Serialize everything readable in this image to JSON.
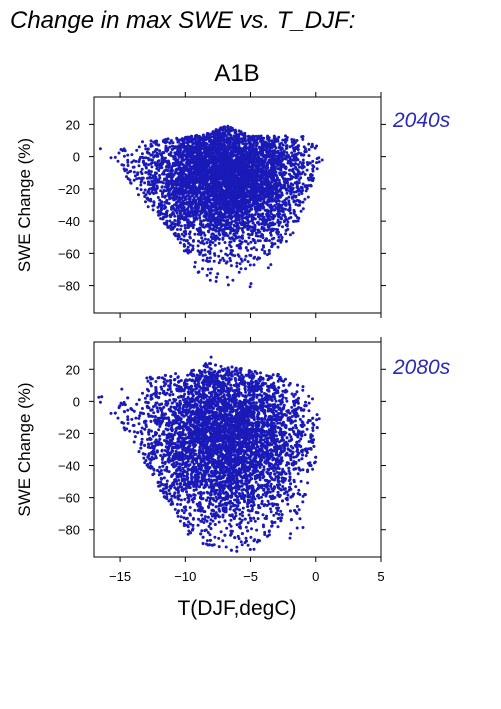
{
  "figure_title": "Change in max SWE vs. T_DJF:",
  "scenario": "A1B",
  "chart_data": [
    {
      "type": "scatter",
      "period": "2040s",
      "xlabel": "T(DJF,degC)",
      "ylabel": "SWE Change (%)",
      "xlim": [
        -17,
        5
      ],
      "ylim": [
        -97,
        37
      ],
      "xticks": [
        -15,
        -10,
        -5,
        0,
        5
      ],
      "yticks": [
        -80,
        -60,
        -40,
        -20,
        0,
        20
      ],
      "show_xtick_labels": false,
      "color": "#1a1ab8",
      "grid": false,
      "x_range": [
        -16.8,
        0.6
      ],
      "y_range": [
        -86,
        20
      ],
      "cloud_outline": [
        [
          -17,
          6
        ],
        [
          -16,
          4
        ],
        [
          -13,
          10
        ],
        [
          -10,
          12
        ],
        [
          -8,
          15
        ],
        [
          -7,
          20
        ],
        [
          -5,
          13
        ],
        [
          -3,
          13
        ],
        [
          -1,
          13
        ],
        [
          0,
          10
        ],
        [
          0.5,
          -2
        ],
        [
          -0.5,
          -25
        ],
        [
          -2,
          -55
        ],
        [
          -3,
          -70
        ],
        [
          -4,
          -82
        ],
        [
          -5,
          -86
        ],
        [
          -6,
          -85
        ],
        [
          -7,
          -82
        ],
        [
          -8,
          -80
        ],
        [
          -9,
          -72
        ],
        [
          -10,
          -60
        ],
        [
          -11,
          -50
        ],
        [
          -12,
          -40
        ],
        [
          -13,
          -30
        ],
        [
          -14,
          -20
        ],
        [
          -15,
          -8
        ],
        [
          -16,
          -2
        ],
        [
          -17,
          0
        ]
      ]
    },
    {
      "type": "scatter",
      "period": "2080s",
      "xlabel": "T(DJF,degC)",
      "ylabel": "SWE Change (%)",
      "xlim": [
        -17,
        5
      ],
      "ylim": [
        -97,
        37
      ],
      "xticks": [
        -15,
        -10,
        -5,
        0,
        5
      ],
      "yticks": [
        -80,
        -60,
        -40,
        -20,
        0,
        20
      ],
      "show_xtick_labels": true,
      "color": "#1a1ab8",
      "grid": false,
      "x_range": [
        -16.8,
        0.6
      ],
      "y_range": [
        -95,
        29
      ],
      "cloud_outline": [
        [
          -17,
          3
        ],
        [
          -15,
          8
        ],
        [
          -13,
          15
        ],
        [
          -11,
          17
        ],
        [
          -9,
          20
        ],
        [
          -8,
          28
        ],
        [
          -7,
          22
        ],
        [
          -5,
          20
        ],
        [
          -3,
          18
        ],
        [
          -2,
          12
        ],
        [
          -0.5,
          8
        ],
        [
          0.3,
          -10
        ],
        [
          0,
          -40
        ],
        [
          -0.5,
          -60
        ],
        [
          -1,
          -80
        ],
        [
          -2,
          -90
        ],
        [
          -4,
          -92
        ],
        [
          -6,
          -94
        ],
        [
          -8,
          -93
        ],
        [
          -9,
          -90
        ],
        [
          -10,
          -84
        ],
        [
          -11,
          -70
        ],
        [
          -12,
          -55
        ],
        [
          -13,
          -40
        ],
        [
          -14,
          -25
        ],
        [
          -15,
          -15
        ],
        [
          -16,
          -5
        ],
        [
          -17,
          -2
        ]
      ]
    }
  ]
}
